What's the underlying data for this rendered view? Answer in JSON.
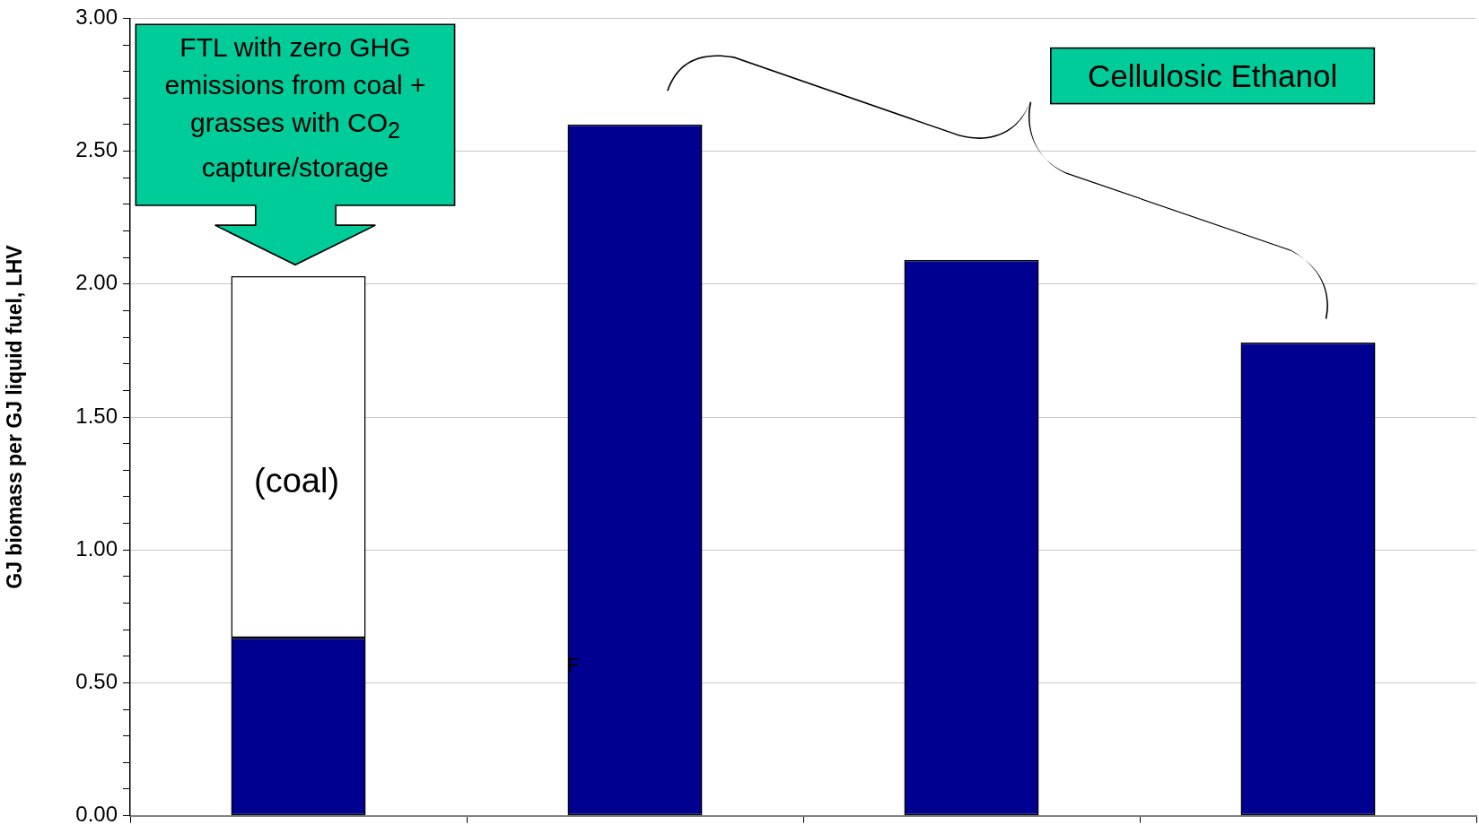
{
  "chart_data": {
    "type": "bar",
    "stacked": true,
    "ylabel": "GJ biomass per GJ liquid fuel, LHV",
    "categories": [
      null,
      null,
      null,
      null
    ],
    "series": [
      {
        "color": "#000090",
        "values": [
          0.67,
          2.6,
          2.09,
          1.78
        ]
      },
      {
        "color": "#ffffff",
        "values": [
          1.36,
          null,
          null,
          null
        ]
      }
    ],
    "ylim": [
      0,
      3
    ],
    "yticks": [
      {
        "value": 0,
        "label": "0.00"
      },
      {
        "value": 0.1,
        "label": null
      },
      {
        "value": 0.2,
        "label": null
      },
      {
        "value": 0.3,
        "label": null
      },
      {
        "value": 0.4,
        "label": null
      },
      {
        "value": 0.5,
        "label": "0.50"
      },
      {
        "value": 0.6,
        "label": null
      },
      {
        "value": 0.7,
        "label": null
      },
      {
        "value": 0.8,
        "label": null
      },
      {
        "value": 0.9,
        "label": null
      },
      {
        "value": 1,
        "label": "1.00"
      },
      {
        "value": 1.1,
        "label": null
      },
      {
        "value": 1.2,
        "label": null
      },
      {
        "value": 1.3,
        "label": null
      },
      {
        "value": 1.4,
        "label": null
      },
      {
        "value": 1.5,
        "label": "1.50"
      },
      {
        "value": 1.6,
        "label": null
      },
      {
        "value": 1.7,
        "label": null
      },
      {
        "value": 1.8,
        "label": null
      },
      {
        "value": 1.9,
        "label": null
      },
      {
        "value": 2,
        "label": "2.00"
      },
      {
        "value": 2.1,
        "label": null
      },
      {
        "value": 2.2,
        "label": null
      },
      {
        "value": 2.3,
        "label": null
      },
      {
        "value": 2.4,
        "label": null
      },
      {
        "value": 2.5,
        "label": "2.50"
      },
      {
        "value": 2.6,
        "label": null
      },
      {
        "value": 2.7,
        "label": null
      },
      {
        "value": 2.8,
        "label": null
      },
      {
        "value": 2.9,
        "label": null
      },
      {
        "value": 3,
        "label": "3.00"
      }
    ],
    "grid": "y",
    "annotations": [
      "FTL with zero GHG emissions from coal + grasses with CO$_{2}$ capture/storage",
      "(coal)",
      "Cellulosic Ethanol",
      "F"
    ]
  }
}
